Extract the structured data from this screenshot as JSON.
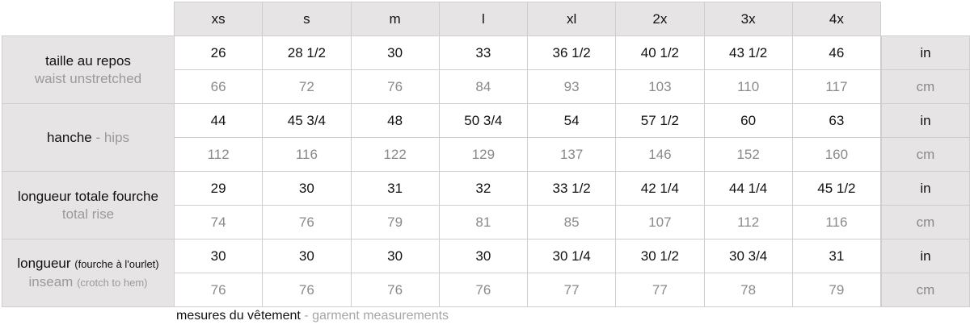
{
  "sizes": [
    "xs",
    "s",
    "m",
    "l",
    "xl",
    "2x",
    "3x",
    "4x"
  ],
  "rows": [
    {
      "label_fr": "taille au repos",
      "label_fr_note": "",
      "label_en": "waist unstretched",
      "label_en_note": "",
      "in": [
        "26",
        "28 1/2",
        "30",
        "33",
        "36 1/2",
        "40 1/2",
        "43 1/2",
        "46"
      ],
      "cm": [
        "66",
        "72",
        "76",
        "84",
        "93",
        "103",
        "110",
        "117"
      ]
    },
    {
      "label_fr": "hanche",
      "label_fr_note": "",
      "label_en": "hips",
      "label_en_note": "",
      "inline": true,
      "in": [
        "44",
        "45 3/4",
        "48",
        "50 3/4",
        "54",
        "57 1/2",
        "60",
        "63"
      ],
      "cm": [
        "112",
        "116",
        "122",
        "129",
        "137",
        "146",
        "152",
        "160"
      ]
    },
    {
      "label_fr": "longueur totale fourche",
      "label_fr_note": "",
      "label_en": "total rise",
      "label_en_note": "",
      "in": [
        "29",
        "30",
        "31",
        "32",
        "33 1/2",
        "42 1/4",
        "44 1/4",
        "45 1/2"
      ],
      "cm": [
        "74",
        "76",
        "79",
        "81",
        "85",
        "107",
        "112",
        "116"
      ]
    },
    {
      "label_fr": "longueur",
      "label_fr_note": "(fourche à l'ourlet)",
      "label_en": "inseam",
      "label_en_note": "(crotch to hem)",
      "in": [
        "30",
        "30",
        "30",
        "30",
        "30 1/4",
        "30 1/2",
        "30 3/4",
        "31"
      ],
      "cm": [
        "76",
        "76",
        "76",
        "76",
        "77",
        "77",
        "78",
        "79"
      ]
    }
  ],
  "units": {
    "in": "in",
    "cm": "cm"
  },
  "separator": " - ",
  "footer": {
    "fr": "mesures du vêtement",
    "en": "garment measurements"
  },
  "colors": {
    "header_bg": "#e6e4e4",
    "border": "#cfcdcd",
    "secondary_text": "#8a8a8a"
  }
}
